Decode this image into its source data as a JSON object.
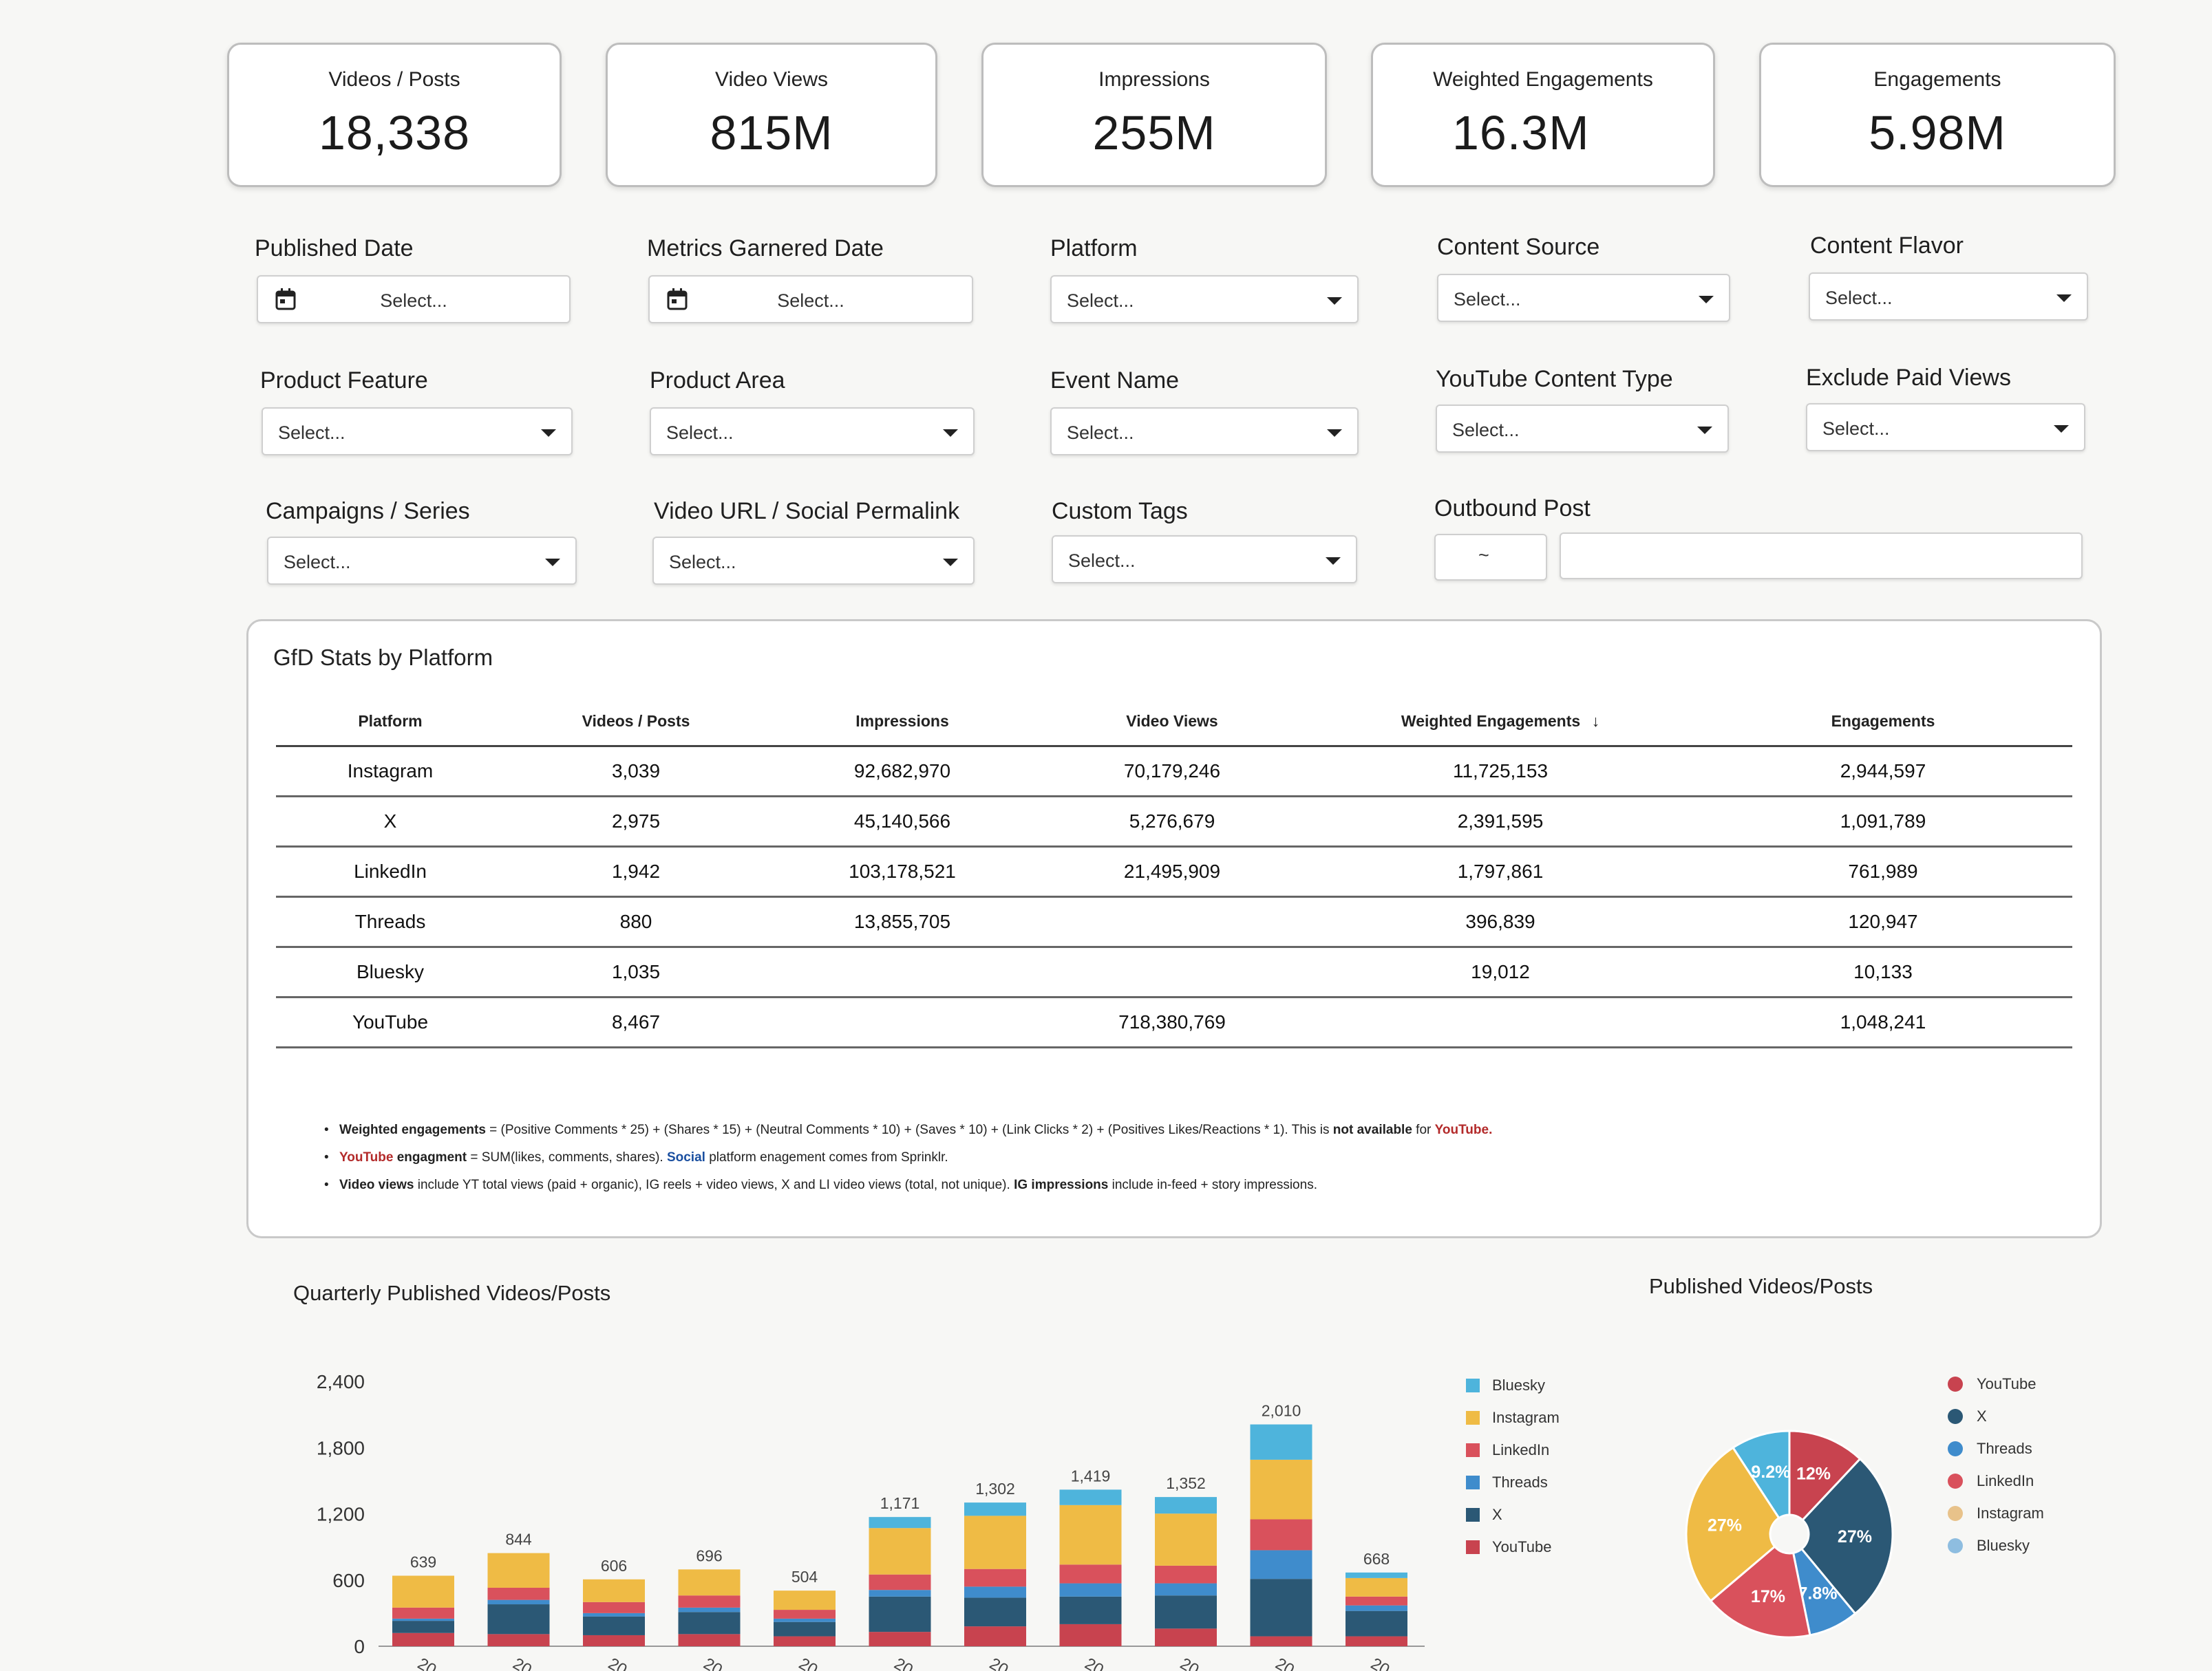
{
  "kpis": [
    {
      "label": "Videos / Posts",
      "value": "18,338"
    },
    {
      "label": "Video Views",
      "value": "815M"
    },
    {
      "label": "Impressions",
      "value": "255M"
    },
    {
      "label": "Weighted Engagements",
      "value": "16.3M"
    },
    {
      "label": "Engagements",
      "value": "5.98M"
    }
  ],
  "filters": {
    "published_date": {
      "label": "Published Date",
      "value": "Select..."
    },
    "metrics_garnered_date": {
      "label": "Metrics Garnered Date",
      "value": "Select..."
    },
    "platform": {
      "label": "Platform",
      "value": "Select..."
    },
    "content_source": {
      "label": "Content Source",
      "value": "Select..."
    },
    "content_flavor": {
      "label": "Content Flavor",
      "value": "Select..."
    },
    "product_feature": {
      "label": "Product Feature",
      "value": "Select..."
    },
    "product_area": {
      "label": "Product Area",
      "value": "Select..."
    },
    "event_name": {
      "label": "Event Name",
      "value": "Select..."
    },
    "youtube_content_type": {
      "label": "YouTube Content Type",
      "value": "Select..."
    },
    "exclude_paid_views": {
      "label": "Exclude Paid Views",
      "value": "Select..."
    },
    "campaigns_series": {
      "label": "Campaigns / Series",
      "value": "Select..."
    },
    "video_url": {
      "label": "Video URL / Social Permalink",
      "value": "Select..."
    },
    "custom_tags": {
      "label": "Custom Tags",
      "value": "Select..."
    },
    "outbound_post": {
      "label": "Outbound Post",
      "value": "~"
    }
  },
  "stats_table": {
    "title": "GfD Stats by Platform",
    "columns": [
      "Platform",
      "Videos / Posts",
      "Impressions",
      "Video Views",
      "Weighted Engagements",
      "Engagements"
    ],
    "sort_indicator": "↓",
    "rows": [
      [
        "Instagram",
        "3,039",
        "92,682,970",
        "70,179,246",
        "11,725,153",
        "2,944,597"
      ],
      [
        "X",
        "2,975",
        "45,140,566",
        "5,276,679",
        "2,391,595",
        "1,091,789"
      ],
      [
        "LinkedIn",
        "1,942",
        "103,178,521",
        "21,495,909",
        "1,797,861",
        "761,989"
      ],
      [
        "Threads",
        "880",
        "13,855,705",
        "",
        "396,839",
        "120,947"
      ],
      [
        "Bluesky",
        "1,035",
        "",
        "",
        "19,012",
        "10,133"
      ],
      [
        "YouTube",
        "8,467",
        "",
        "718,380,769",
        "",
        "1,048,241"
      ]
    ]
  },
  "notes": {
    "n1_bold": "Weighted engagements",
    "n1_text": " = (Positive Comments * 25) + (Shares * 15) + (Neutral Comments * 10) + (Saves * 10) + (Link Clicks * 2) + (Positives Likes/Reactions * 1). This is ",
    "n1_bold2": "not available",
    "n1_text2": " for ",
    "n1_red": "YouTube.",
    "n2_red": "YouTube",
    "n2_bold": " engagment",
    "n2_text": " = SUM(likes, comments, shares). ",
    "n2_blue": "Social",
    "n2_text2": " platform enagement comes from Sprinklr.",
    "n3_bold": "Video views",
    "n3_text": " include YT total views (paid + organic), IG reels + video views, X and LI video views (total, not unique). ",
    "n3_bold2": "IG impressions",
    "n3_text2": " include in-feed + story impressions."
  },
  "colors": {
    "Bluesky": "#4eb4dc",
    "Instagram": "#efbb45",
    "LinkedIn": "#d9515c",
    "Threads": "#3f8ccc",
    "X": "#2b5875",
    "YouTube": "#c8434f"
  },
  "chart_data": [
    {
      "type": "bar",
      "stacked": true,
      "title": "Quarterly Published Videos/Posts",
      "ylim": [
        0,
        2400
      ],
      "yticks": [
        "2,400",
        "1,800",
        "1,200",
        "600",
        "0"
      ],
      "xtick_prefix": "20",
      "legend": [
        "Bluesky",
        "Instagram",
        "LinkedIn",
        "Threads",
        "X",
        "YouTube"
      ],
      "totals": [
        639,
        844,
        606,
        696,
        504,
        1171,
        1302,
        1419,
        1352,
        2010,
        668
      ],
      "total_labels": [
        "639",
        "844",
        "606",
        "696",
        "504",
        "1,171",
        "1,302",
        "1,419",
        "1,352",
        "2,010",
        "668"
      ],
      "series": [
        {
          "name": "YouTube",
          "values": [
            120,
            110,
            100,
            110,
            90,
            130,
            180,
            200,
            160,
            90,
            90
          ]
        },
        {
          "name": "X",
          "values": [
            110,
            270,
            170,
            200,
            130,
            320,
            260,
            250,
            300,
            520,
            230
          ]
        },
        {
          "name": "Threads",
          "values": [
            20,
            40,
            30,
            40,
            30,
            60,
            100,
            120,
            110,
            260,
            50
          ]
        },
        {
          "name": "LinkedIn",
          "values": [
            100,
            110,
            100,
            110,
            80,
            140,
            160,
            170,
            160,
            280,
            80
          ]
        },
        {
          "name": "Instagram",
          "values": [
            289,
            314,
            206,
            236,
            174,
            421,
            482,
            539,
            472,
            540,
            168
          ]
        },
        {
          "name": "Bluesky",
          "values": [
            0,
            0,
            0,
            0,
            0,
            100,
            120,
            140,
            150,
            320,
            50
          ]
        }
      ]
    },
    {
      "type": "pie",
      "title": "Published Videos/Posts",
      "donut": true,
      "legend": [
        "YouTube",
        "X",
        "Threads",
        "LinkedIn",
        "Instagram",
        "Bluesky"
      ],
      "slices": [
        {
          "name": "Bluesky",
          "value": 9.2,
          "label": "9.2%"
        },
        {
          "name": "YouTube",
          "value": 12,
          "label": "12%"
        },
        {
          "name": "X",
          "value": 27,
          "label": "27%"
        },
        {
          "name": "Threads",
          "value": 7.8,
          "label": "7.8%"
        },
        {
          "name": "LinkedIn",
          "value": 17,
          "label": "17%"
        },
        {
          "name": "Instagram",
          "value": 27,
          "label": "27%"
        }
      ],
      "legend_colors": [
        "#c8434f",
        "#2b5875",
        "#3f8ccc",
        "#d9515c",
        "#e8c28a",
        "#8ebde0"
      ]
    }
  ]
}
